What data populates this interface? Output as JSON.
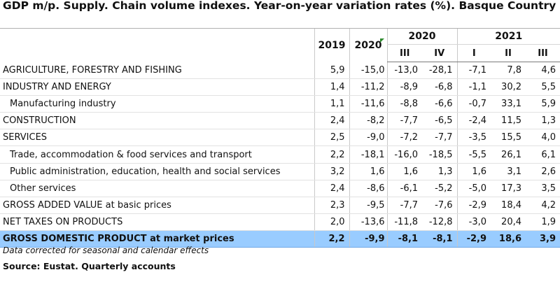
{
  "title": "GDP m/p. Supply. Chain volume indexes. Year-on-year variation rates (%). Basque Country",
  "header": {
    "year_2019": "2019",
    "year_2020": "2020",
    "group_2020": "2020",
    "group_2021": "2021",
    "quarters": [
      "III",
      "IV",
      "I",
      "II",
      "III"
    ]
  },
  "rows": [
    {
      "label": "AGRICULTURE, FORESTRY AND FISHING",
      "values": [
        "5,9",
        "-15,0",
        "-13,0",
        "-28,1",
        "-7,1",
        "7,8",
        "4,6"
      ]
    },
    {
      "label": "INDUSTRY AND ENERGY",
      "values": [
        "1,4",
        "-11,2",
        "-8,9",
        "-6,8",
        "-1,1",
        "30,2",
        "5,5"
      ]
    },
    {
      "label": "Manufacturing industry",
      "values": [
        "1,1",
        "-11,6",
        "-8,8",
        "-6,6",
        "-0,7",
        "33,1",
        "5,9"
      ]
    },
    {
      "label": "CONSTRUCTION",
      "values": [
        "2,4",
        "-8,2",
        "-7,7",
        "-6,5",
        "-2,4",
        "11,5",
        "1,3"
      ]
    },
    {
      "label": "SERVICES",
      "values": [
        "2,5",
        "-9,0",
        "-7,2",
        "-7,7",
        "-3,5",
        "15,5",
        "4,0"
      ]
    },
    {
      "label": "Trade, accommodation & food services and transport",
      "values": [
        "2,2",
        "-18,1",
        "-16,0",
        "-18,5",
        "-5,5",
        "26,1",
        "6,1"
      ]
    },
    {
      "label": "Public administration, education, health and social services",
      "values": [
        "3,2",
        "1,6",
        "1,6",
        "1,3",
        "1,6",
        "3,1",
        "2,6"
      ]
    },
    {
      "label": "Other services",
      "values": [
        "2,4",
        "-8,6",
        "-6,1",
        "-5,2",
        "-5,0",
        "17,3",
        "3,5"
      ]
    },
    {
      "label": "GROSS ADDED VALUE at basic prices",
      "values": [
        "2,3",
        "-9,5",
        "-7,7",
        "-7,6",
        "-2,9",
        "18,4",
        "4,2"
      ]
    },
    {
      "label": "NET TAXES ON PRODUCTS",
      "values": [
        "2,0",
        "-13,6",
        "-11,8",
        "-12,8",
        "-3,0",
        "20,4",
        "1,9"
      ]
    },
    {
      "label": "GROSS DOMESTIC PRODUCT at market prices",
      "values": [
        "2,2",
        "-9,9",
        "-8,1",
        "-8,1",
        "-2,9",
        "18,6",
        "3,9"
      ]
    }
  ],
  "footer": {
    "note": "Data corrected for seasonal and calendar effects",
    "source": "Source: Eustat. Quarterly accounts"
  },
  "colors": {
    "total_row_bg": "#99ccff",
    "flag": "#2e8b2e"
  }
}
